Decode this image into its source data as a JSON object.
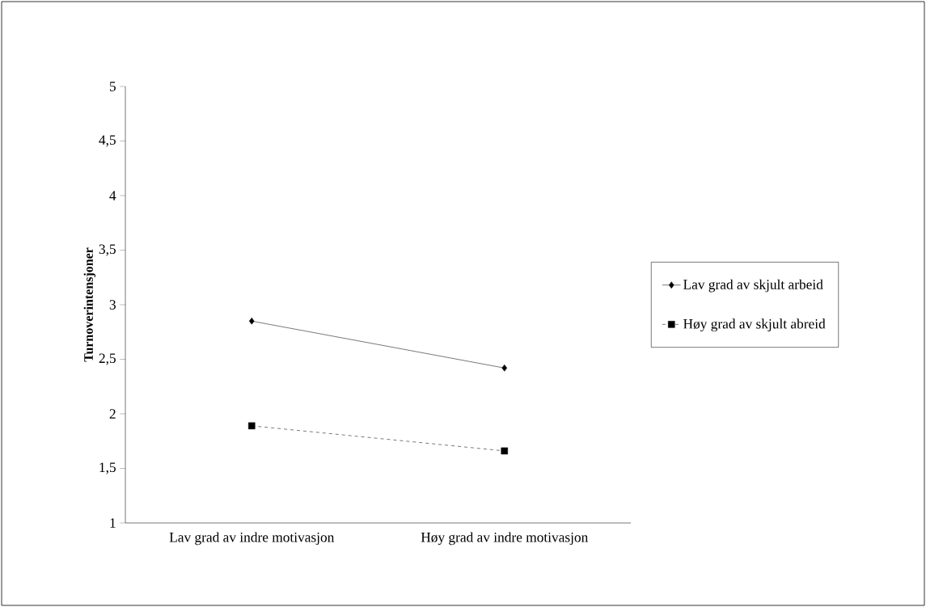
{
  "chart_data": {
    "type": "line",
    "ylabel": "Turnoverintensjoner",
    "categories": [
      "Lav grad av indre motivasjon",
      "Høy grad av indre motivasjon"
    ],
    "series": [
      {
        "name": "Lav grad av skjult arbeid",
        "color": "#000000",
        "values": [
          2.85,
          2.42
        ],
        "marker": "diamond",
        "line_style": "solid"
      },
      {
        "name": "Høy grad av skjult abreid",
        "color": "#000000",
        "values": [
          1.89,
          1.66
        ],
        "marker": "square",
        "line_style": "dashed"
      }
    ],
    "ylim": [
      1,
      5
    ],
    "yticks": [
      1,
      {
        "value": 1.5,
        "label": "1,5"
      },
      2,
      {
        "value": 2.5,
        "label": "2,5"
      },
      3,
      {
        "value": 3.5,
        "label": "3,5"
      },
      4,
      {
        "value": 4.5,
        "label": "4,5"
      },
      5
    ],
    "grid": false,
    "legend": "right"
  }
}
